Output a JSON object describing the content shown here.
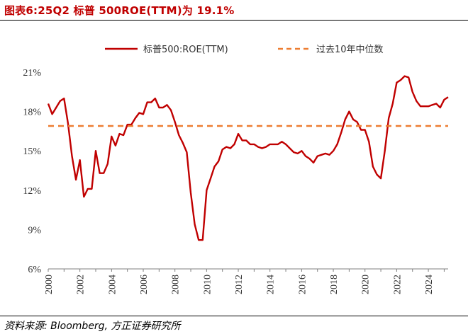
{
  "figure": {
    "title": "图表6:25Q2 标普 500ROE(TTM)为 19.1%",
    "source": "资料来源: Bloomberg, 方正证券研究所"
  },
  "colors": {
    "series": "#c00000",
    "reference": "#ed7d31",
    "axis": "#7f7f7f"
  },
  "chart_data": {
    "type": "line",
    "title": "图表6:25Q2 标普 500ROE(TTM)为 19.1%",
    "xlabel": "",
    "ylabel": "",
    "xlim": [
      2000,
      2025.25
    ],
    "ylim": [
      6,
      21
    ],
    "x_ticks": [
      "2000",
      "2002",
      "2004",
      "2006",
      "2008",
      "2010",
      "2012",
      "2014",
      "2016",
      "2018",
      "2020",
      "2022",
      "2024"
    ],
    "y_ticks": [
      "6%",
      "9%",
      "12%",
      "15%",
      "18%",
      "21%"
    ],
    "y_tick_values": [
      6,
      9,
      12,
      15,
      18,
      21
    ],
    "grid": false,
    "legend_position": "top",
    "series": [
      {
        "name": "标普500:ROE(TTM)",
        "style": "solid",
        "x": [
          2000.0,
          2000.25,
          2000.5,
          2000.75,
          2001.0,
          2001.25,
          2001.5,
          2001.75,
          2002.0,
          2002.25,
          2002.5,
          2002.75,
          2003.0,
          2003.25,
          2003.5,
          2003.75,
          2004.0,
          2004.25,
          2004.5,
          2004.75,
          2005.0,
          2005.25,
          2005.5,
          2005.75,
          2006.0,
          2006.25,
          2006.5,
          2006.75,
          2007.0,
          2007.25,
          2007.5,
          2007.75,
          2008.0,
          2008.25,
          2008.5,
          2008.75,
          2009.0,
          2009.25,
          2009.5,
          2009.75,
          2010.0,
          2010.25,
          2010.5,
          2010.75,
          2011.0,
          2011.25,
          2011.5,
          2011.75,
          2012.0,
          2012.25,
          2012.5,
          2012.75,
          2013.0,
          2013.25,
          2013.5,
          2013.75,
          2014.0,
          2014.25,
          2014.5,
          2014.75,
          2015.0,
          2015.25,
          2015.5,
          2015.75,
          2016.0,
          2016.25,
          2016.5,
          2016.75,
          2017.0,
          2017.25,
          2017.5,
          2017.75,
          2018.0,
          2018.25,
          2018.5,
          2018.75,
          2019.0,
          2019.25,
          2019.5,
          2019.75,
          2020.0,
          2020.25,
          2020.5,
          2020.75,
          2021.0,
          2021.25,
          2021.5,
          2021.75,
          2022.0,
          2022.25,
          2022.5,
          2022.75,
          2023.0,
          2023.25,
          2023.5,
          2023.75,
          2024.0,
          2024.25,
          2024.5,
          2024.75,
          2025.0,
          2025.25
        ],
        "y": [
          18.6,
          17.8,
          18.3,
          18.8,
          19.0,
          17.1,
          14.6,
          12.8,
          14.3,
          11.5,
          12.1,
          12.1,
          15.0,
          13.3,
          13.3,
          14.0,
          16.1,
          15.4,
          16.3,
          16.2,
          17.0,
          17.0,
          17.5,
          17.9,
          17.8,
          18.7,
          18.7,
          19.0,
          18.3,
          18.3,
          18.5,
          18.1,
          17.2,
          16.2,
          15.6,
          14.9,
          11.8,
          9.4,
          8.2,
          8.2,
          12.0,
          12.9,
          13.8,
          14.2,
          15.1,
          15.3,
          15.2,
          15.5,
          16.3,
          15.8,
          15.8,
          15.5,
          15.5,
          15.3,
          15.2,
          15.3,
          15.5,
          15.5,
          15.5,
          15.7,
          15.5,
          15.2,
          14.9,
          14.8,
          15.0,
          14.6,
          14.4,
          14.1,
          14.6,
          14.7,
          14.8,
          14.7,
          15.0,
          15.5,
          16.4,
          17.4,
          18.0,
          17.4,
          17.2,
          16.6,
          16.6,
          15.7,
          13.8,
          13.2,
          12.9,
          15.0,
          17.5,
          18.6,
          20.2,
          20.4,
          20.7,
          20.6,
          19.5,
          18.8,
          18.4,
          18.4,
          18.4,
          18.5,
          18.6,
          18.3,
          18.9,
          19.1
        ]
      },
      {
        "name": "过去10年中位数",
        "style": "dashed",
        "x": [
          2000,
          2025.25
        ],
        "y": [
          16.9,
          16.9
        ]
      }
    ]
  }
}
